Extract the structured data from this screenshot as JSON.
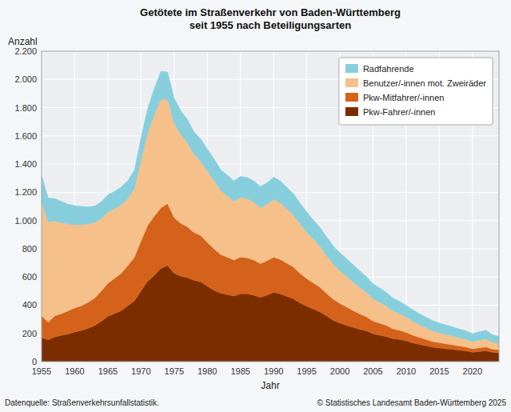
{
  "chart_data": {
    "type": "area",
    "stacked": true,
    "title": "Getötete im Straßenverkehr von Baden-Württemberg\nseit 1955 nach Beteiligungsarten",
    "xlabel": "Jahr",
    "ylabel": "Anzahl",
    "annotations": [
      "Datenquelle: Straßenverkehrsunfallstatistik.",
      "© Statistisches Landesamt Baden-Württemberg 2025"
    ],
    "x": [
      1955,
      1956,
      1957,
      1958,
      1959,
      1960,
      1961,
      1962,
      1963,
      1964,
      1965,
      1966,
      1967,
      1968,
      1969,
      1970,
      1971,
      1972,
      1973,
      1974,
      1975,
      1976,
      1977,
      1978,
      1979,
      1980,
      1981,
      1982,
      1983,
      1984,
      1985,
      1986,
      1987,
      1988,
      1989,
      1990,
      1991,
      1992,
      1993,
      1994,
      1995,
      1996,
      1997,
      1998,
      1999,
      2000,
      2001,
      2002,
      2003,
      2004,
      2005,
      2006,
      2007,
      2008,
      2009,
      2010,
      2011,
      2012,
      2013,
      2014,
      2015,
      2016,
      2017,
      2018,
      2019,
      2020,
      2021,
      2022,
      2023,
      2024
    ],
    "series": [
      {
        "name": "Pkw-Fahrer/-innen",
        "color": "#7B2D00",
        "values": [
          170,
          155,
          175,
          185,
          195,
          210,
          220,
          235,
          255,
          285,
          320,
          340,
          360,
          395,
          430,
          500,
          570,
          610,
          660,
          680,
          625,
          605,
          595,
          575,
          565,
          535,
          505,
          485,
          475,
          465,
          480,
          480,
          470,
          455,
          470,
          490,
          480,
          462,
          445,
          415,
          393,
          372,
          352,
          323,
          292,
          272,
          257,
          242,
          228,
          218,
          197,
          187,
          177,
          162,
          157,
          147,
          132,
          122,
          112,
          102,
          96,
          91,
          86,
          81,
          76,
          66,
          71,
          76,
          66,
          61
        ]
      },
      {
        "name": "Pkw-Mitfahrer/-innen",
        "color": "#D4621A",
        "values": [
          155,
          125,
          150,
          155,
          165,
          170,
          175,
          185,
          195,
          215,
          235,
          250,
          265,
          285,
          310,
          355,
          395,
          420,
          430,
          440,
          395,
          375,
          360,
          340,
          330,
          310,
          295,
          275,
          265,
          255,
          260,
          255,
          250,
          240,
          245,
          250,
          245,
          235,
          225,
          210,
          195,
          185,
          175,
          160,
          150,
          140,
          130,
          120,
          110,
          100,
          90,
          85,
          80,
          70,
          65,
          60,
          55,
          50,
          45,
          40,
          38,
          35,
          33,
          30,
          28,
          25,
          27,
          28,
          24,
          22
        ]
      },
      {
        "name": "Benutzer/-innen mot. Zweiräder",
        "color": "#F5C08A",
        "values": [
          800,
          710,
          670,
          645,
          615,
          590,
          575,
          555,
          535,
          515,
          505,
          495,
          485,
          475,
          485,
          575,
          655,
          720,
          770,
          740,
          670,
          630,
          595,
          555,
          525,
          505,
          485,
          455,
          435,
          415,
          425,
          420,
          410,
          395,
          400,
          410,
          400,
          385,
          370,
          350,
          330,
          310,
          290,
          268,
          248,
          232,
          218,
          202,
          188,
          172,
          158,
          148,
          138,
          126,
          118,
          108,
          98,
          90,
          83,
          76,
          70,
          66,
          62,
          58,
          55,
          50,
          53,
          56,
          48,
          44
        ]
      },
      {
        "name": "Radfahrende",
        "color": "#87CEDC",
        "values": [
          195,
          170,
          160,
          150,
          140,
          135,
          130,
          122,
          117,
          117,
          122,
          122,
          127,
          127,
          132,
          157,
          172,
          187,
          197,
          193,
          177,
          167,
          167,
          157,
          157,
          157,
          152,
          147,
          147,
          147,
          147,
          150,
          152,
          150,
          152,
          157,
          157,
          152,
          150,
          147,
          142,
          137,
          134,
          132,
          130,
          127,
          125,
          122,
          117,
          112,
          107,
          102,
          97,
          92,
          87,
          84,
          82,
          77,
          74,
          72,
          70,
          67,
          65,
          62,
          60,
          57,
          60,
          62,
          54,
          50
        ]
      }
    ],
    "xlim": [
      1955,
      2024
    ],
    "xticks": [
      1955,
      1960,
      1965,
      1970,
      1975,
      1980,
      1985,
      1990,
      1995,
      2000,
      2005,
      2010,
      2015,
      2020
    ],
    "ylim": [
      0,
      2200
    ],
    "yticks": [
      0,
      200,
      400,
      600,
      800,
      {
        "value": 1000,
        "label": "1.000"
      },
      {
        "value": 1200,
        "label": "1.200"
      },
      {
        "value": 1400,
        "label": "1.400"
      },
      {
        "value": 1600,
        "label": "1.600"
      },
      {
        "value": 1800,
        "label": "1.800"
      },
      {
        "value": 2000,
        "label": "2.000"
      },
      {
        "value": 2200,
        "label": "2.200"
      }
    ],
    "grid": true,
    "legend": "upper-right"
  }
}
